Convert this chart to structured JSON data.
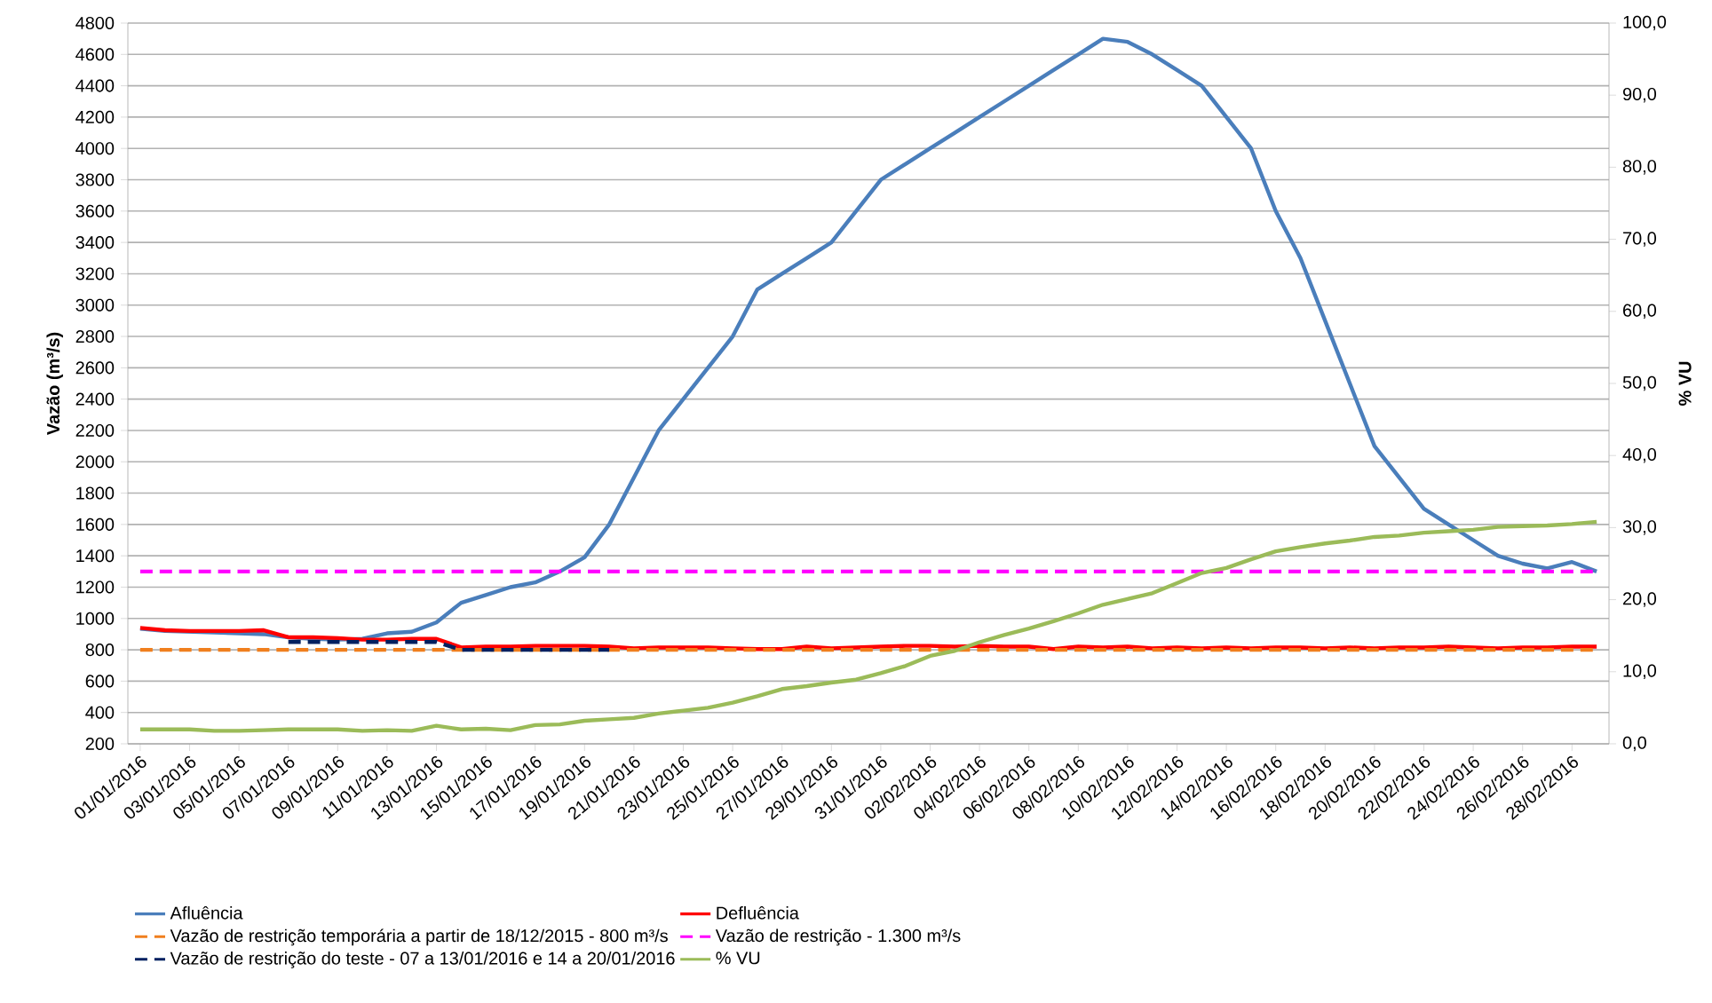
{
  "chart_data": {
    "type": "line",
    "ylabel": "Vazão (m³/s)",
    "y2label": "% VU",
    "grid": "y",
    "legend": "bottom",
    "marker": "none",
    "categories": [
      "01/01/2016",
      null,
      "03/01/2016",
      null,
      "05/01/2016",
      null,
      "07/01/2016",
      null,
      "09/01/2016",
      null,
      "11/01/2016",
      null,
      "13/01/2016",
      null,
      "15/01/2016",
      null,
      "17/01/2016",
      null,
      "19/01/2016",
      null,
      "21/01/2016",
      null,
      "23/01/2016",
      null,
      "25/01/2016",
      null,
      "27/01/2016",
      null,
      "29/01/2016",
      null,
      "31/01/2016",
      null,
      "02/02/2016",
      null,
      "04/02/2016",
      null,
      "06/02/2016",
      null,
      "08/02/2016",
      null,
      "10/02/2016",
      null,
      "12/02/2016",
      null,
      "14/02/2016",
      null,
      "16/02/2016",
      null,
      "18/02/2016",
      null,
      "20/02/2016",
      null,
      "22/02/2016",
      null,
      "24/02/2016",
      null,
      "26/02/2016",
      null,
      "28/02/2016",
      null
    ],
    "ylim": [
      200,
      4800
    ],
    "yticks": [
      200,
      400,
      600,
      800,
      1000,
      1200,
      1400,
      1600,
      1800,
      2000,
      2200,
      2400,
      2600,
      2800,
      3000,
      3200,
      3400,
      3600,
      3800,
      4000,
      4200,
      4400,
      4600,
      4800
    ],
    "y2lim": [
      0,
      100
    ],
    "y2ticks": [
      {
        "value": 0,
        "label": "0,0"
      },
      {
        "value": 10,
        "label": "10,0"
      },
      {
        "value": 20,
        "label": "20,0"
      },
      {
        "value": 30,
        "label": "30,0"
      },
      {
        "value": 40,
        "label": "40,0"
      },
      {
        "value": 50,
        "label": "50,0"
      },
      {
        "value": 60,
        "label": "60,0"
      },
      {
        "value": 70,
        "label": "70,0"
      },
      {
        "value": 80,
        "label": "80,0"
      },
      {
        "value": 90,
        "label": "90,0"
      },
      {
        "value": 100,
        "label": "100,0"
      }
    ],
    "series": [
      {
        "name": "Afluência",
        "color": "#4a7ebb",
        "line_style": "solid",
        "values": [
          935,
          920,
          915,
          910,
          905,
          900,
          880,
          870,
          865,
          870,
          905,
          915,
          975,
          1100,
          1150,
          1200,
          1230,
          1300,
          1390,
          1600,
          1900,
          2200,
          2400,
          2600,
          2800,
          3100,
          3200,
          3300,
          3400,
          3600,
          3800,
          3900,
          4000,
          4100,
          4200,
          4300,
          4400,
          4500,
          4600,
          4700,
          4680,
          4600,
          4500,
          4400,
          4200,
          4000,
          3600,
          3300,
          2900,
          2500,
          2100,
          1900,
          1700,
          1600,
          1500,
          1400,
          1350,
          1320,
          1360,
          1300
        ]
      },
      {
        "name": "Defluência",
        "color": "#ff0000",
        "line_style": "solid",
        "values": [
          940,
          925,
          920,
          920,
          920,
          925,
          880,
          880,
          875,
          865,
          865,
          870,
          870,
          815,
          820,
          820,
          825,
          825,
          825,
          820,
          810,
          815,
          815,
          815,
          810,
          805,
          805,
          820,
          810,
          815,
          820,
          825,
          825,
          820,
          825,
          820,
          820,
          805,
          820,
          815,
          820,
          810,
          815,
          810,
          815,
          810,
          815,
          815,
          810,
          815,
          810,
          815,
          815,
          820,
          815,
          810,
          815,
          815,
          820,
          820
        ]
      },
      {
        "name": "Vazão de restrição temporária a partir de 18/12/2015 - 800 m³/s",
        "color": "#f07f1e",
        "line_style": "dashed",
        "values": [
          800,
          800,
          800,
          800,
          800,
          800,
          800,
          800,
          800,
          800,
          800,
          800,
          800,
          800,
          800,
          800,
          800,
          800,
          800,
          800,
          800,
          800,
          800,
          800,
          800,
          800,
          800,
          800,
          800,
          800,
          800,
          800,
          800,
          800,
          800,
          800,
          800,
          800,
          800,
          800,
          800,
          800,
          800,
          800,
          800,
          800,
          800,
          800,
          800,
          800,
          800,
          800,
          800,
          800,
          800,
          800,
          800,
          800,
          800,
          800
        ]
      },
      {
        "name": "Vazão de restrição - 1.300 m³/s",
        "color": "#ff00ff",
        "line_style": "dashed",
        "values": [
          1300,
          1300,
          1300,
          1300,
          1300,
          1300,
          1300,
          1300,
          1300,
          1300,
          1300,
          1300,
          1300,
          1300,
          1300,
          1300,
          1300,
          1300,
          1300,
          1300,
          1300,
          1300,
          1300,
          1300,
          1300,
          1300,
          1300,
          1300,
          1300,
          1300,
          1300,
          1300,
          1300,
          1300,
          1300,
          1300,
          1300,
          1300,
          1300,
          1300,
          1300,
          1300,
          1300,
          1300,
          1300,
          1300,
          1300,
          1300,
          1300,
          1300,
          1300,
          1300,
          1300,
          1300,
          1300,
          1300,
          1300,
          1300,
          1300,
          1300
        ]
      },
      {
        "name": "Vazão de restrição do teste - 07 a 13/01/2016 e 14 a 20/01/2016",
        "color": "#002060",
        "line_style": "dashed",
        "values": [
          null,
          null,
          null,
          null,
          null,
          null,
          850,
          850,
          850,
          850,
          850,
          850,
          850,
          800,
          800,
          800,
          800,
          800,
          800,
          800,
          null,
          null,
          null,
          null,
          null,
          null,
          null,
          null,
          null,
          null,
          null,
          null,
          null,
          null,
          null,
          null,
          null,
          null,
          null,
          null,
          null,
          null,
          null,
          null,
          null,
          null,
          null,
          null,
          null,
          null,
          null,
          null,
          null,
          null,
          null,
          null,
          null,
          null,
          null,
          null
        ]
      },
      {
        "name": "% VU",
        "color": "#9bbb59",
        "line_style": "solid",
        "axis": "y2",
        "values": [
          2.0,
          2.0,
          2.0,
          1.8,
          1.8,
          1.9,
          2.0,
          2.0,
          2.0,
          1.8,
          1.9,
          1.8,
          2.5,
          2.0,
          2.1,
          1.9,
          2.6,
          2.7,
          3.2,
          3.4,
          3.6,
          4.2,
          4.6,
          5.0,
          5.7,
          6.6,
          7.6,
          8.0,
          8.5,
          8.9,
          9.8,
          10.8,
          12.2,
          12.9,
          14.1,
          15.1,
          16.0,
          17.0,
          18.1,
          19.3,
          20.1,
          20.9,
          22.3,
          23.7,
          24.4,
          25.6,
          26.7,
          27.3,
          27.8,
          28.2,
          28.7,
          28.9,
          29.3,
          29.5,
          29.7,
          30.1,
          30.2,
          30.3,
          30.5,
          30.8
        ]
      }
    ]
  }
}
